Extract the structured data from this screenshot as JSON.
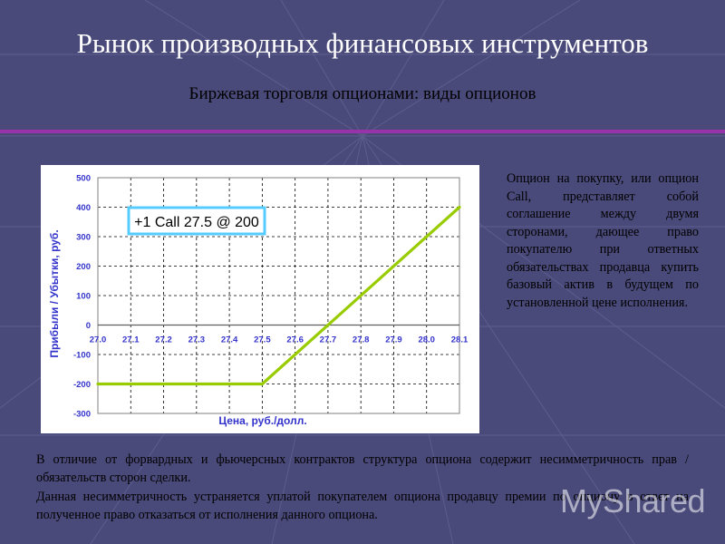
{
  "slide": {
    "title": "Рынок производных финансовых инструментов",
    "subtitle": "Биржевая торговля опционами: виды опционов",
    "description": "Опцион на покупку, или опцион Call, представляет собой соглашение между двумя сторонами, дающее право покупателю при ответных обязательствах продавца купить базовый актив в будущем по установленной цене исполнения.",
    "paragraph1": "В отличие от форвардных и фьючерсных контрактов структура опциона содержит несимметричность прав / обязательств сторон сделки.",
    "paragraph2": "Данная несимметричность устраняется уплатой покупателем опциона продавцу премии по опциону в ответ на полученное право отказаться от исполнения данного опциона.",
    "watermark": "MyShared"
  },
  "chart_data": {
    "type": "line",
    "annotation": "+1 Call 27.5 @ 200",
    "xlabel": "Цена, руб./долл.",
    "ylabel": "Прибыли / Убытки, руб.",
    "xlim": [
      27.0,
      28.1
    ],
    "ylim": [
      -300,
      500
    ],
    "x_ticks": [
      "27.0",
      "27.1",
      "27.2",
      "27.3",
      "27.4",
      "27.5",
      "27.6",
      "27.7",
      "27.8",
      "27.9",
      "28.0",
      "28.1"
    ],
    "y_ticks": [
      "500",
      "400",
      "300",
      "200",
      "100",
      "0",
      "-100",
      "-200",
      "-300"
    ],
    "grid": true,
    "series": [
      {
        "color": "#99cc00",
        "x": [
          27.0,
          27.5,
          28.1
        ],
        "y": [
          -200,
          -200,
          400
        ]
      }
    ]
  },
  "colors": {
    "background": "#4a4a7a",
    "divider": "#9933aa",
    "axis_text": "#3333cc",
    "line": "#99cc00"
  }
}
